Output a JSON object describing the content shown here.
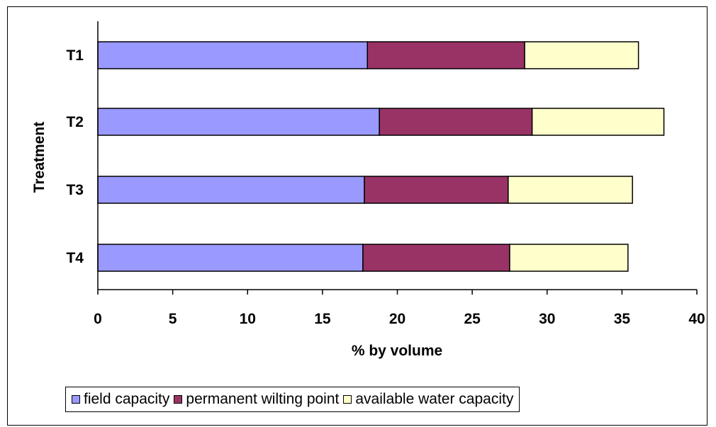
{
  "chart_data": {
    "type": "bar",
    "orientation": "horizontal",
    "stacked": true,
    "categories": [
      "T1",
      "T2",
      "T3",
      "T4"
    ],
    "series": [
      {
        "name": "field capacity",
        "color": "#9999ff",
        "values": [
          18.0,
          18.8,
          17.8,
          17.7
        ]
      },
      {
        "name": "permanent wilting point",
        "color": "#993366",
        "values": [
          10.5,
          10.2,
          9.6,
          9.8
        ]
      },
      {
        "name": "available water capacity",
        "color": "#ffffcc",
        "values": [
          7.6,
          8.8,
          8.3,
          7.9
        ]
      }
    ],
    "xlabel": "% by volume",
    "ylabel": "Treatment",
    "xlim": [
      0,
      40
    ],
    "xticks": [
      "0",
      "5",
      "10",
      "15",
      "20",
      "25",
      "30",
      "35",
      "40"
    ],
    "grid": false,
    "legend_position": "bottom"
  }
}
